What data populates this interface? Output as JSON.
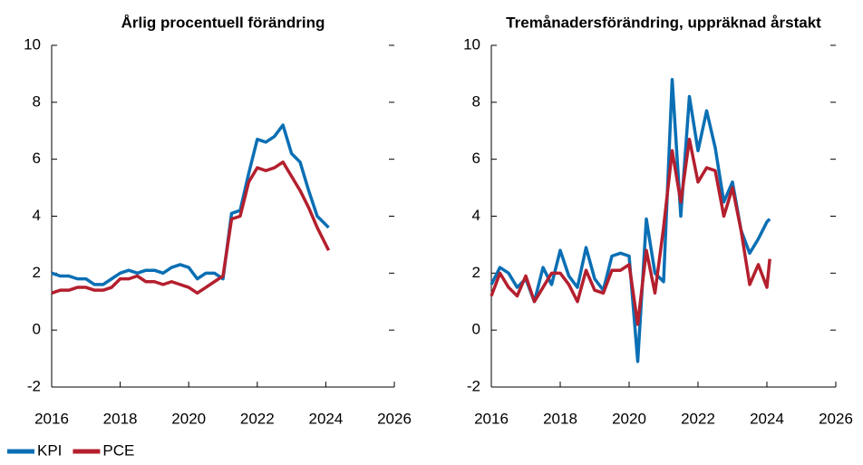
{
  "chart_data": [
    {
      "type": "line",
      "title": "Årlig procentuell förändring",
      "x": [
        2016,
        2016.25,
        2016.5,
        2016.75,
        2017,
        2017.25,
        2017.5,
        2017.75,
        2018,
        2018.25,
        2018.5,
        2018.75,
        2019,
        2019.25,
        2019.5,
        2019.75,
        2020,
        2020.25,
        2020.5,
        2020.75,
        2021,
        2021.25,
        2021.5,
        2021.75,
        2022,
        2022.25,
        2022.5,
        2022.75,
        2023,
        2023.25,
        2023.5,
        2023.75,
        2024,
        2024.083
      ],
      "series": [
        {
          "name": "KPI",
          "color": "#0a6fb4",
          "values": [
            2.0,
            1.9,
            1.9,
            1.8,
            1.8,
            1.6,
            1.6,
            1.8,
            2.0,
            2.1,
            2.0,
            2.1,
            2.1,
            2.0,
            2.2,
            2.3,
            2.2,
            1.8,
            2.0,
            2.0,
            1.8,
            4.1,
            4.2,
            5.5,
            6.7,
            6.6,
            6.8,
            7.2,
            6.2,
            5.9,
            4.9,
            4.0,
            3.7,
            3.6
          ]
        },
        {
          "name": "PCE",
          "color": "#b41f2e",
          "values": [
            1.3,
            1.4,
            1.4,
            1.5,
            1.5,
            1.4,
            1.4,
            1.5,
            1.8,
            1.8,
            1.9,
            1.7,
            1.7,
            1.6,
            1.7,
            1.6,
            1.5,
            1.3,
            1.5,
            1.7,
            1.9,
            3.9,
            4.0,
            5.2,
            5.7,
            5.6,
            5.7,
            5.9,
            5.4,
            4.9,
            4.3,
            3.6,
            3.0,
            2.8
          ]
        }
      ],
      "xlim": [
        2016,
        2026
      ],
      "xticks": [
        2016,
        2018,
        2020,
        2022,
        2024,
        2026
      ],
      "ylim": [
        -2,
        10
      ],
      "yticks": [
        -2,
        0,
        2,
        4,
        6,
        8,
        10
      ]
    },
    {
      "type": "line",
      "title": "Tremånadersförändring, uppräknad årstakt",
      "x": [
        2016,
        2016.25,
        2016.5,
        2016.75,
        2017,
        2017.25,
        2017.5,
        2017.75,
        2018,
        2018.25,
        2018.5,
        2018.75,
        2019,
        2019.25,
        2019.5,
        2019.75,
        2020,
        2020.25,
        2020.5,
        2020.75,
        2021,
        2021.25,
        2021.5,
        2021.75,
        2022,
        2022.25,
        2022.5,
        2022.75,
        2023,
        2023.25,
        2023.5,
        2023.75,
        2024,
        2024.083
      ],
      "series": [
        {
          "name": "KPI",
          "color": "#0a6fb4",
          "values": [
            1.6,
            2.2,
            2.0,
            1.5,
            1.8,
            1.0,
            2.2,
            1.6,
            2.8,
            1.9,
            1.5,
            2.9,
            1.8,
            1.4,
            2.6,
            2.7,
            2.6,
            -1.1,
            3.9,
            2.0,
            1.7,
            8.8,
            4.0,
            8.2,
            6.3,
            7.7,
            6.4,
            4.5,
            5.2,
            3.5,
            2.7,
            3.2,
            3.8,
            3.9
          ]
        },
        {
          "name": "PCE",
          "color": "#b41f2e",
          "values": [
            1.2,
            2.0,
            1.5,
            1.2,
            1.9,
            1.0,
            1.5,
            2.0,
            2.0,
            1.6,
            1.0,
            2.1,
            1.4,
            1.3,
            2.1,
            2.1,
            2.3,
            0.2,
            2.8,
            1.3,
            3.6,
            6.3,
            4.5,
            6.7,
            5.2,
            5.7,
            5.6,
            4.0,
            5.0,
            3.5,
            1.6,
            2.3,
            1.5,
            2.5
          ]
        }
      ],
      "xlim": [
        2016,
        2026
      ],
      "xticks": [
        2016,
        2018,
        2020,
        2022,
        2024,
        2026
      ],
      "ylim": [
        -2,
        10
      ],
      "yticks": [
        -2,
        0,
        2,
        4,
        6,
        8,
        10
      ]
    }
  ]
}
